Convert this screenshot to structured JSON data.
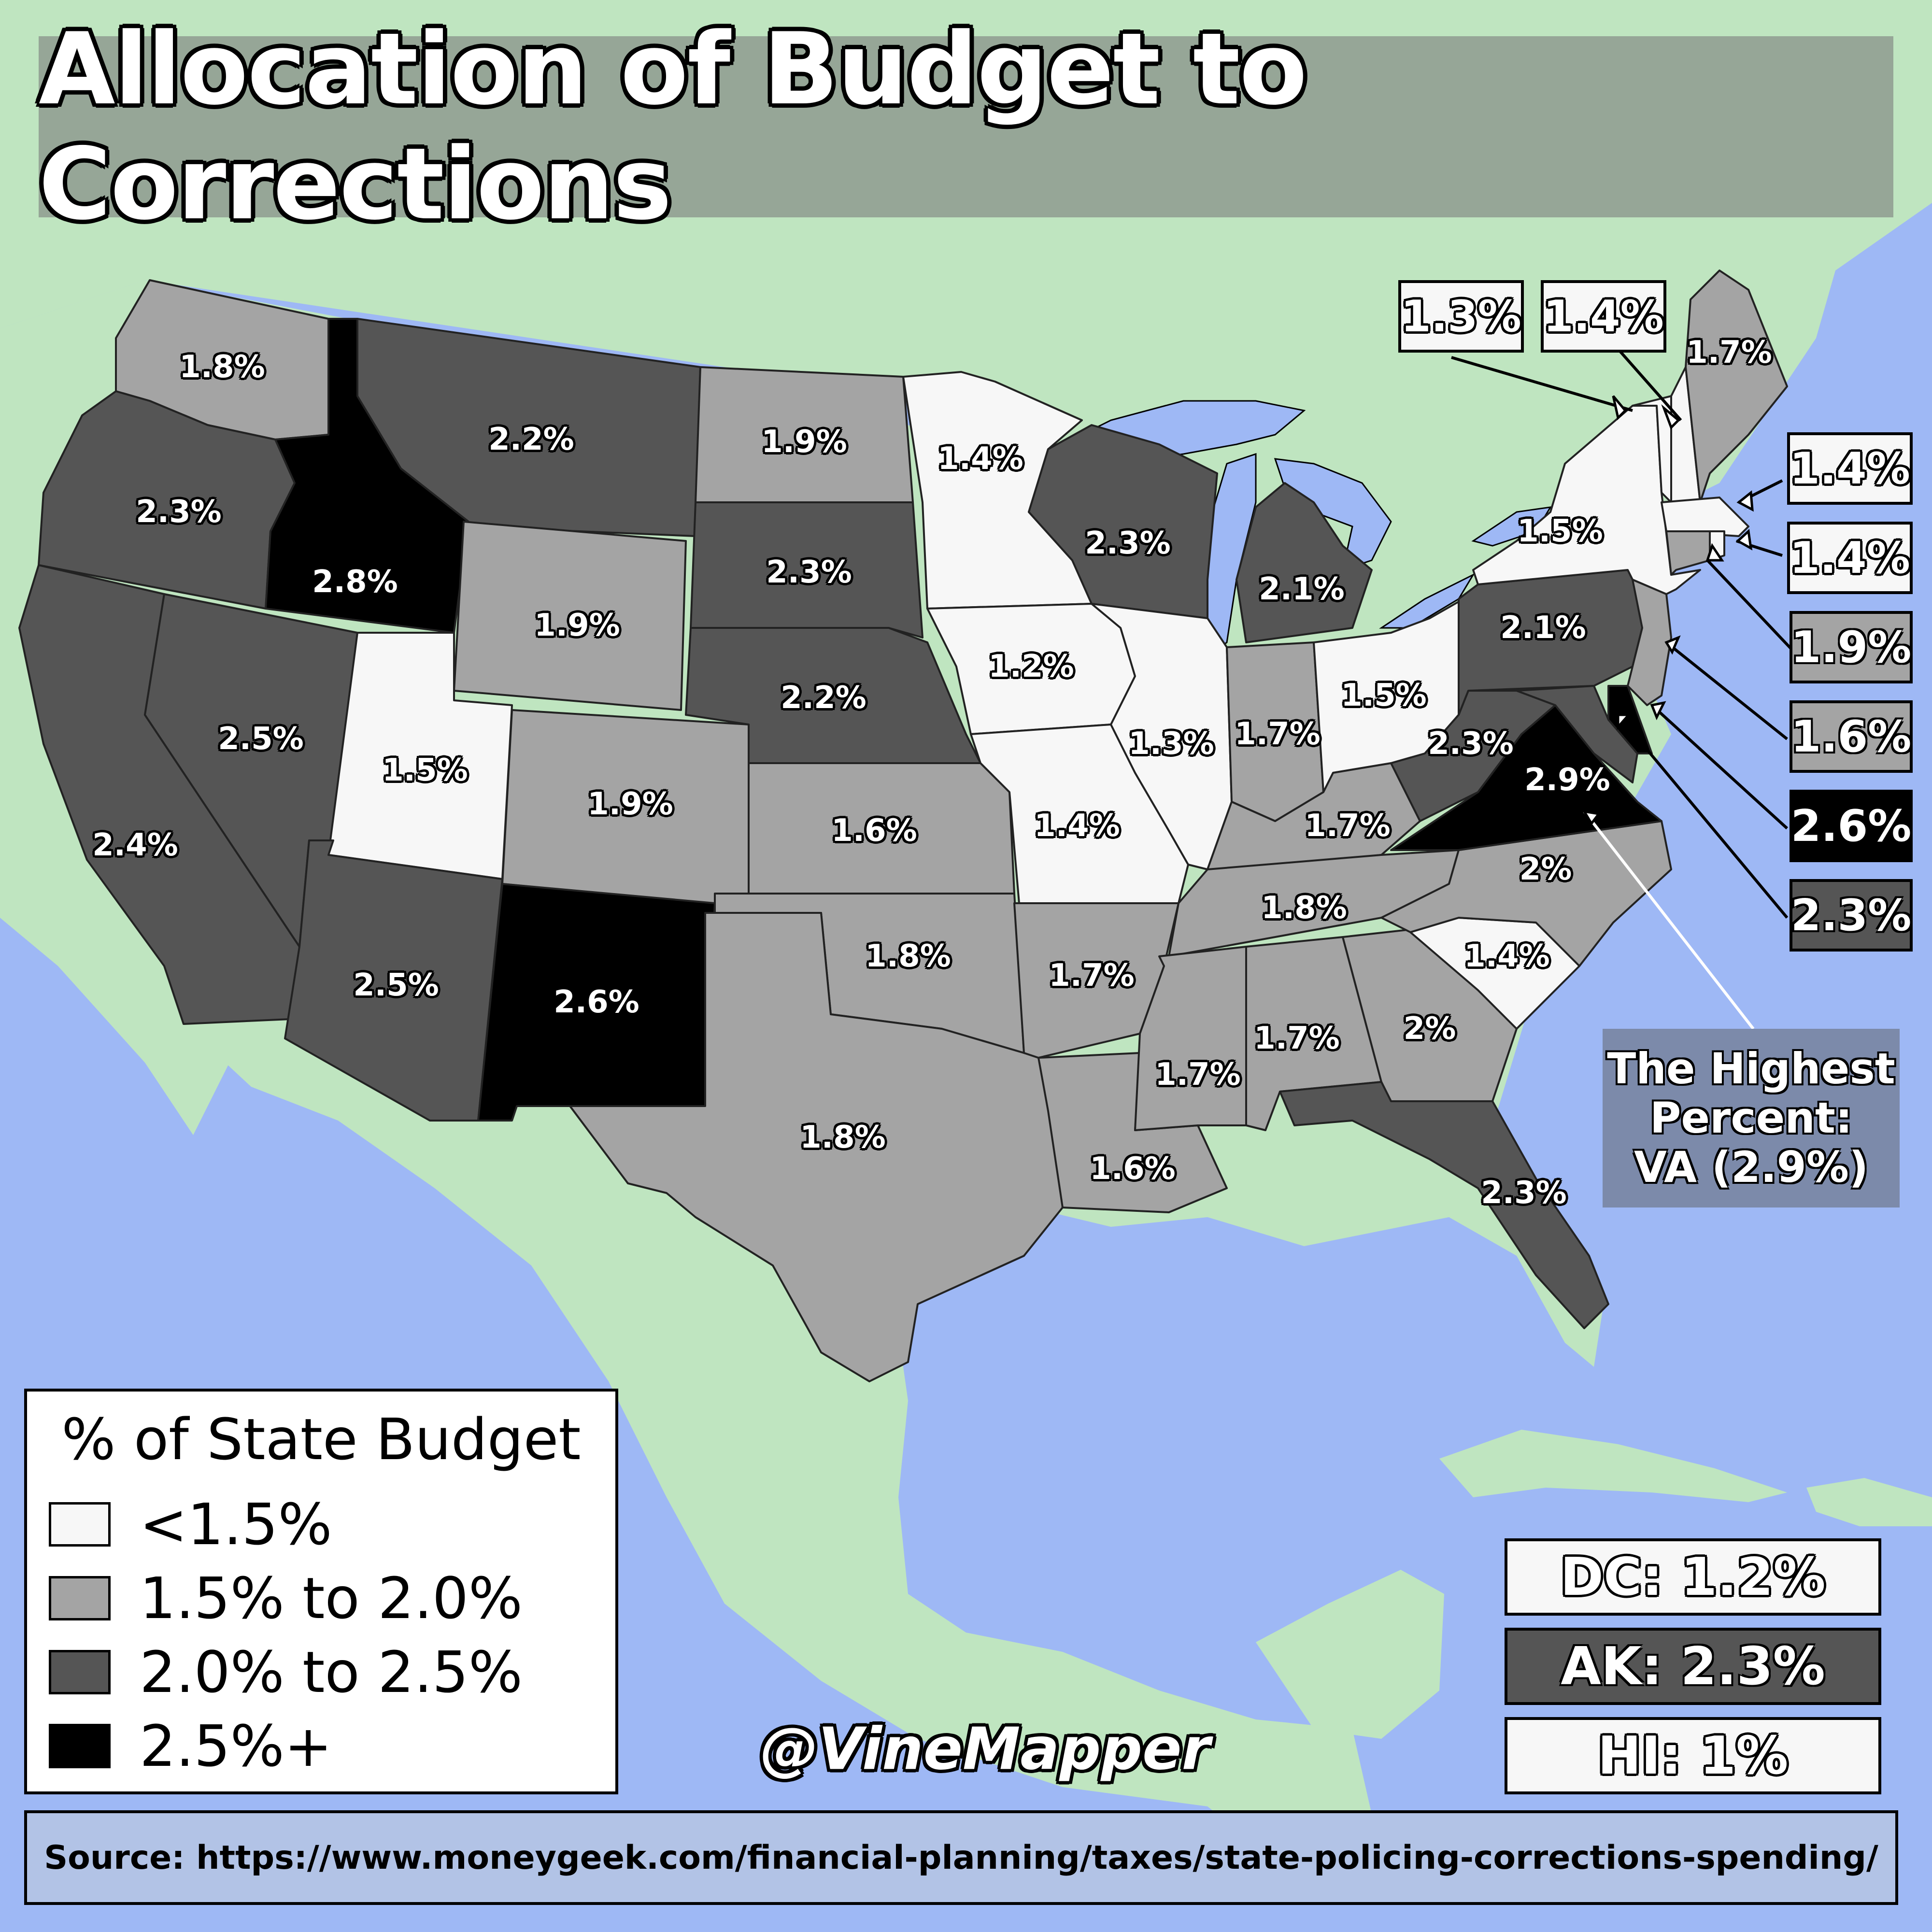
{
  "title": "Allocation of Budget to Corrections",
  "colors": {
    "ocean": "#9eb8f5",
    "land": "#bfe5c0",
    "lt1_5": "#f7f7f7",
    "r1_5_2_0": "#a4a4a4",
    "r2_0_2_5": "#555555",
    "gt2_5": "#000000"
  },
  "legend": {
    "title": "% of State Budget",
    "items": [
      {
        "label": "<1.5%",
        "color": "#f7f7f7"
      },
      {
        "label": "1.5% to 2.0%",
        "color": "#a4a4a4"
      },
      {
        "label": "2.0% to 2.5%",
        "color": "#555555"
      },
      {
        "label": "2.5%+",
        "color": "#000000"
      }
    ]
  },
  "states": {
    "WA": "1.8%",
    "OR": "2.3%",
    "CA": "2.4%",
    "NV": "2.5%",
    "ID": "2.8%",
    "MT": "2.2%",
    "WY": "1.9%",
    "UT": "1.5%",
    "AZ": "2.5%",
    "CO": "1.9%",
    "NM": "2.6%",
    "ND": "1.9%",
    "SD": "2.3%",
    "NE": "2.2%",
    "KS": "1.6%",
    "OK": "1.8%",
    "TX": "1.8%",
    "MN": "1.4%",
    "IA": "1.2%",
    "MO": "1.4%",
    "AR": "1.7%",
    "LA": "1.6%",
    "WI": "2.3%",
    "IL": "1.3%",
    "MI": "2.1%",
    "IN": "1.7%",
    "OH": "1.5%",
    "KY": "1.7%",
    "TN": "1.8%",
    "MS": "1.7%",
    "AL": "1.7%",
    "GA": "2%",
    "FL": "2.3%",
    "SC": "1.4%",
    "NC": "2%",
    "VA": "2.9%",
    "WV": "2.3%",
    "PA": "2.1%",
    "NY": "1.5%",
    "ME": "1.7%"
  },
  "callouts": {
    "VT": "1.3%",
    "NH": "1.4%",
    "MA": "1.4%",
    "RI": "1.4%",
    "CT": "1.9%",
    "NJ": "1.6%",
    "DE": "2.6%",
    "MD": "2.3%"
  },
  "extras": {
    "DC": "DC: 1.2%",
    "AK": "AK: 2.3%",
    "HI": "HI: 1%"
  },
  "highest": {
    "line1": "The Highest",
    "line2": "Percent:",
    "line3": "VA (2.9%)"
  },
  "handle": "@VineMapper",
  "source": "Source: https://www.moneygeek.com/financial-planning/taxes/state-policing-corrections-spending/"
}
